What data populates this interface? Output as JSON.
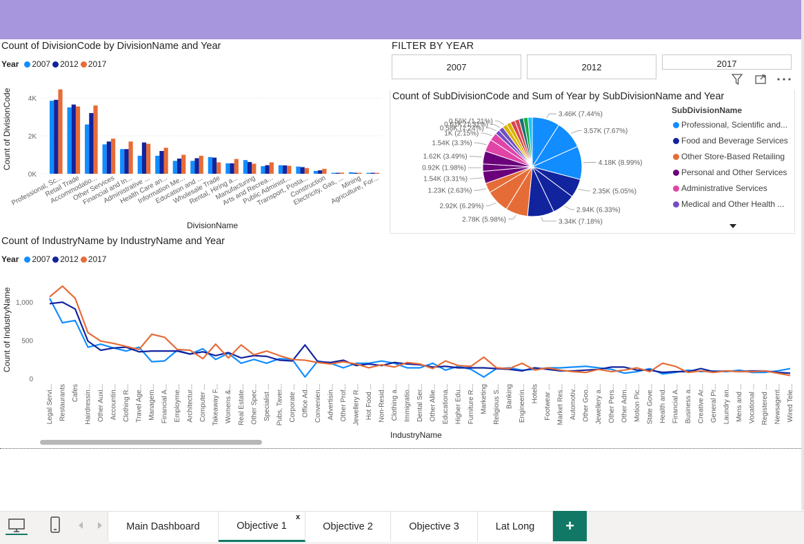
{
  "colors": {
    "y2007": "#118dff",
    "y2012": "#12239e",
    "y2017": "#e66c37",
    "header": "#a796dd",
    "accent_tab": "#117865"
  },
  "chart1": {
    "title": "Count of DivisionCode by DivisionName and Year",
    "legend_title": "Year",
    "ylabel": "Count of DivisionCode",
    "xlabel": "DivisionName",
    "yticks": [
      "4K",
      "2K",
      "0K"
    ]
  },
  "chart2": {
    "title": "Count of IndustryName by IndustryName and Year",
    "legend_title": "Year",
    "ylabel": "Count of IndustryName",
    "xlabel": "IndustryName",
    "yticks": [
      "1,000",
      "500",
      "0"
    ]
  },
  "legend_labels": [
    "2007",
    "2012",
    "2017"
  ],
  "slicer": {
    "title": "FILTER BY YEAR",
    "options": [
      "2007",
      "2012",
      "2017"
    ]
  },
  "pie": {
    "title": "Count of SubDivisionCode and Sum of Year by SubDivisionName and Year",
    "legend_title": "SubDivisionName",
    "legend_items": [
      {
        "label": "Professional, Scientific and...",
        "color": "#118dff"
      },
      {
        "label": "Food and Beverage Services",
        "color": "#12239e"
      },
      {
        "label": "Other Store-Based Retailing",
        "color": "#e66c37"
      },
      {
        "label": "Personal and Other Services",
        "color": "#6b007b"
      },
      {
        "label": "Administrative Services",
        "color": "#e044a7"
      },
      {
        "label": "Medical and Other Health ...",
        "color": "#744ec2"
      }
    ]
  },
  "tabs": {
    "items": [
      "Main Dashboard",
      "Objective 1",
      "Objective 2",
      "Objective 3",
      "Lat Long"
    ],
    "active": "Objective 1",
    "close": "x",
    "add": "+"
  },
  "chart_data": [
    {
      "type": "bar",
      "title": "Count of DivisionCode by DivisionName and Year",
      "xlabel": "DivisionName",
      "ylabel": "Count of DivisionCode",
      "ylim": [
        0,
        4800
      ],
      "yticks": [
        0,
        2000,
        4000
      ],
      "legend_placement": "top-left",
      "categories": [
        "Professional, Sc...",
        "Retail Trade",
        "Accommodatio...",
        "Other Services",
        "Financial and In...",
        "Administrative ...",
        "Health Care an...",
        "Information Me...",
        "Education and ...",
        "Wholesale Trade",
        "Rental, Hiring a...",
        "Manufacturing",
        "Arts and Recrea...",
        "Public Administ...",
        "Transport, Posta...",
        "Construction",
        "Electricity, Gas, ...",
        "Mining",
        "Agriculture, For..."
      ],
      "series": [
        {
          "name": "2007",
          "values": [
            3850,
            3500,
            2600,
            1550,
            1300,
            950,
            950,
            680,
            680,
            880,
            550,
            720,
            400,
            450,
            380,
            150,
            50,
            80,
            50
          ]
        },
        {
          "name": "2012",
          "values": [
            3900,
            3650,
            3200,
            1700,
            1300,
            1650,
            1200,
            800,
            820,
            850,
            550,
            620,
            450,
            440,
            350,
            180,
            50,
            50,
            50
          ]
        },
        {
          "name": "2017",
          "values": [
            4450,
            3550,
            3600,
            1850,
            1700,
            1580,
            1370,
            1000,
            950,
            600,
            780,
            530,
            600,
            420,
            300,
            260,
            60,
            50,
            50
          ]
        }
      ]
    },
    {
      "type": "pie",
      "title": "Count of SubDivisionCode and Sum of Year by SubDivisionName and Year",
      "legend_placement": "right",
      "slices": [
        {
          "label": "3.46K (7.44%)",
          "value": 7.44,
          "color": "#118dff"
        },
        {
          "label": "3.57K (7.67%)",
          "value": 7.67,
          "color": "#118dff"
        },
        {
          "label": "4.18K (8.99%)",
          "value": 8.99,
          "color": "#118dff"
        },
        {
          "label": "2.35K (5.05%)",
          "value": 5.05,
          "color": "#12239e"
        },
        {
          "label": "2.94K (6.33%)",
          "value": 6.33,
          "color": "#12239e"
        },
        {
          "label": "3.34K (7.18%)",
          "value": 7.18,
          "color": "#12239e"
        },
        {
          "label": "2.78K (5.98%)",
          "value": 5.98,
          "color": "#e66c37"
        },
        {
          "label": "2.92K (6.29%)",
          "value": 6.29,
          "color": "#e66c37"
        },
        {
          "label": "1.23K (2.63%)",
          "value": 2.63,
          "color": "#e66c37"
        },
        {
          "label": "1.54K (3.31%)",
          "value": 3.31,
          "color": "#6b007b"
        },
        {
          "label": "0.92K (1.98%)",
          "value": 1.98,
          "color": "#6b007b"
        },
        {
          "label": "1.62K (3.49%)",
          "value": 3.49,
          "color": "#6b007b"
        },
        {
          "label": "1.54K (3.3%)",
          "value": 3.3,
          "color": "#e044a7"
        },
        {
          "label": "1K (2.15%)",
          "value": 2.15,
          "color": "#e044a7"
        },
        {
          "label": "0.58K (1.24%)",
          "value": 1.24,
          "color": "#744ec2"
        },
        {
          "label": "0.61K (1.31%)",
          "value": 1.31,
          "color": "#744ec2"
        },
        {
          "label": "0.56K (1.21%)",
          "value": 1.21,
          "color": "#d9b300"
        },
        {
          "label": "",
          "value": 1.2,
          "color": "#d9b300"
        },
        {
          "label": "",
          "value": 1.2,
          "color": "#d64550"
        },
        {
          "label": "",
          "value": 1.2,
          "color": "#d64550"
        },
        {
          "label": "",
          "value": 1.2,
          "color": "#197278"
        },
        {
          "label": "",
          "value": 1.2,
          "color": "#1aab40"
        },
        {
          "label": "",
          "value": 1.2,
          "color": "#15c6f4"
        }
      ]
    },
    {
      "type": "line",
      "title": "Count of IndustryName by IndustryName and Year",
      "xlabel": "IndustryName",
      "ylabel": "Count of IndustryName",
      "ylim": [
        0,
        1300
      ],
      "yticks": [
        0,
        500,
        1000
      ],
      "legend_placement": "top-left",
      "categories": [
        "Legal Servi...",
        "Restaurants",
        "Cafes",
        "Hairdressin...",
        "Other Auxi...",
        "Accountin...",
        "Clothing R...",
        "Travel Age...",
        "Managem...",
        "Financial A...",
        "Employme...",
        "Architectur...",
        "Computer ...",
        "Takeaway F...",
        "Womens &...",
        "Real Estate...",
        "Other Spec...",
        "Specialist ...",
        "Pubs, Taver...",
        "Corporate ...",
        "Office Ad...",
        "Convenien...",
        "Advertisin...",
        "Other Prof...",
        "Jewellery R...",
        "Hot Food ...",
        "Non-Resid...",
        "Clothing a...",
        "Immigratio...",
        "Dental Ser...",
        "Other Allie...",
        "Educationa...",
        "Higher Edu...",
        "Furniture R...",
        "Marketing",
        "Religious S...",
        "Banking",
        "Engineerin...",
        "Hotels",
        "Footwear ...",
        "Market Res...",
        "Automotiv...",
        "Other Goo...",
        "Jewellery a...",
        "Other Pers...",
        "Other Adm...",
        "Motion Pic...",
        "State Gove...",
        "Health and...",
        "Financial A...",
        "Business a...",
        "Creative Ar...",
        "General Pr...",
        "Laundry an...",
        "Mens and ...",
        "Vocational ...",
        "Registered ...",
        "Newsagent...",
        "Wired Tele..."
      ],
      "series": [
        {
          "name": "2007",
          "values": [
            1050,
            730,
            760,
            410,
            450,
            400,
            360,
            410,
            220,
            230,
            370,
            320,
            390,
            250,
            330,
            200,
            250,
            200,
            260,
            250,
            20,
            230,
            200,
            140,
            200,
            200,
            230,
            200,
            140,
            140,
            200,
            110,
            160,
            120,
            20,
            130,
            140,
            110,
            120,
            140,
            140,
            150,
            160,
            140,
            120,
            70,
            90,
            130,
            60,
            80,
            110,
            90,
            100,
            90,
            110,
            80,
            80,
            100,
            130
          ]
        },
        {
          "name": "2012",
          "values": [
            980,
            1000,
            910,
            490,
            370,
            400,
            410,
            350,
            360,
            360,
            360,
            320,
            350,
            300,
            340,
            270,
            300,
            290,
            240,
            230,
            440,
            220,
            210,
            240,
            170,
            190,
            170,
            210,
            190,
            180,
            150,
            160,
            140,
            140,
            140,
            130,
            120,
            100,
            140,
            120,
            100,
            100,
            110,
            120,
            150,
            150,
            110,
            110,
            80,
            90,
            90,
            130,
            90,
            100,
            90,
            100,
            100,
            80,
            70
          ]
        },
        {
          "name": "2017",
          "values": [
            1070,
            1210,
            1050,
            600,
            490,
            460,
            420,
            380,
            580,
            540,
            380,
            370,
            260,
            450,
            270,
            440,
            310,
            360,
            300,
            250,
            240,
            210,
            190,
            220,
            190,
            140,
            180,
            150,
            210,
            190,
            130,
            230,
            170,
            160,
            280,
            140,
            130,
            200,
            110,
            140,
            110,
            90,
            80,
            120,
            90,
            110,
            140,
            90,
            200,
            160,
            80,
            100,
            80,
            100,
            90,
            90,
            100,
            70,
            40
          ]
        }
      ]
    }
  ]
}
